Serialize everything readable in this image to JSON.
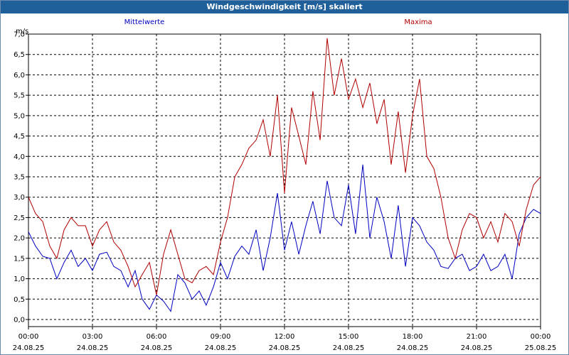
{
  "window": {
    "title": "Windgeschwindigkeit [m/s] skaliert"
  },
  "chart_data": {
    "type": "line",
    "title": "Windgeschwindigkeit [m/s] skaliert",
    "ylabel": "m/s",
    "xlabel": "",
    "ylim": [
      0,
      7.0
    ],
    "yticks": [
      "0,0",
      "0,5",
      "1,0",
      "1,5",
      "2,0",
      "2,5",
      "3,0",
      "3,5",
      "4,0",
      "4,5",
      "5,0",
      "5,5",
      "6,0",
      "6,5",
      "7,0"
    ],
    "xlim_hours": [
      0,
      24
    ],
    "xticks": [
      {
        "time": "00:00",
        "date": "24.08.25"
      },
      {
        "time": "03:00",
        "date": "24.08.25"
      },
      {
        "time": "06:00",
        "date": "24.08.25"
      },
      {
        "time": "09:00",
        "date": "24.08.25"
      },
      {
        "time": "12:00",
        "date": "24.08.25"
      },
      {
        "time": "15:00",
        "date": "24.08.25"
      },
      {
        "time": "18:00",
        "date": "24.08.25"
      },
      {
        "time": "21:00",
        "date": "24.08.25"
      },
      {
        "time": "00:00",
        "date": "25.08.25"
      }
    ],
    "grid": true,
    "series": [
      {
        "name": "Mittelwerte",
        "color": "#0000c0",
        "x": [
          0,
          0.33,
          0.67,
          1,
          1.33,
          1.67,
          2,
          2.33,
          2.67,
          3,
          3.33,
          3.67,
          4,
          4.33,
          4.67,
          5,
          5.33,
          5.67,
          6,
          6.33,
          6.67,
          7,
          7.33,
          7.67,
          8,
          8.33,
          8.67,
          9,
          9.33,
          9.67,
          10,
          10.33,
          10.67,
          11,
          11.33,
          11.67,
          12,
          12.33,
          12.67,
          13,
          13.33,
          13.67,
          14,
          14.33,
          14.67,
          15,
          15.33,
          15.67,
          16,
          16.33,
          16.67,
          17,
          17.33,
          17.67,
          18,
          18.33,
          18.67,
          19,
          19.33,
          19.67,
          20,
          20.33,
          20.67,
          21,
          21.33,
          21.67,
          22,
          22.33,
          22.67,
          23,
          23.33,
          23.67,
          24
        ],
        "values": [
          2.15,
          1.8,
          1.55,
          1.5,
          1.0,
          1.4,
          1.7,
          1.3,
          1.5,
          1.2,
          1.6,
          1.65,
          1.3,
          1.2,
          0.8,
          1.2,
          0.5,
          0.25,
          0.6,
          0.45,
          0.2,
          1.1,
          0.9,
          0.5,
          0.7,
          0.35,
          0.8,
          1.4,
          1.0,
          1.55,
          1.8,
          1.6,
          2.2,
          1.2,
          2.0,
          3.1,
          1.7,
          2.4,
          1.6,
          2.3,
          2.9,
          2.1,
          3.4,
          2.5,
          2.3,
          3.3,
          2.1,
          3.8,
          2.0,
          3.0,
          2.4,
          1.5,
          2.8,
          1.3,
          2.5,
          2.3,
          1.9,
          1.7,
          1.3,
          1.25,
          1.5,
          1.6,
          1.2,
          1.3,
          1.6,
          1.2,
          1.3,
          1.6,
          1.0,
          2.1,
          2.5,
          2.7,
          2.6
        ]
      },
      {
        "name": "Maxima",
        "color": "#b00000",
        "x": [
          0,
          0.33,
          0.67,
          1,
          1.33,
          1.67,
          2,
          2.33,
          2.67,
          3,
          3.33,
          3.67,
          4,
          4.33,
          4.67,
          5,
          5.33,
          5.67,
          6,
          6.33,
          6.67,
          7,
          7.33,
          7.67,
          8,
          8.33,
          8.67,
          9,
          9.33,
          9.67,
          10,
          10.33,
          10.67,
          11,
          11.33,
          11.67,
          12,
          12.33,
          12.67,
          13,
          13.33,
          13.67,
          14,
          14.33,
          14.67,
          15,
          15.33,
          15.67,
          16,
          16.33,
          16.67,
          17,
          17.33,
          17.67,
          18,
          18.33,
          18.67,
          19,
          19.33,
          19.67,
          20,
          20.33,
          20.67,
          21,
          21.33,
          21.67,
          22,
          22.33,
          22.67,
          23,
          23.33,
          23.67,
          24
        ],
        "values": [
          3.0,
          2.6,
          2.4,
          1.8,
          1.5,
          2.2,
          2.5,
          2.3,
          2.3,
          1.8,
          2.2,
          2.4,
          1.9,
          1.7,
          1.3,
          0.8,
          1.1,
          1.4,
          0.6,
          1.6,
          2.2,
          1.6,
          1.0,
          0.9,
          1.2,
          1.3,
          1.1,
          1.9,
          2.5,
          3.5,
          3.8,
          4.2,
          4.4,
          4.9,
          4.0,
          5.5,
          3.1,
          5.2,
          4.5,
          3.8,
          5.6,
          4.4,
          6.9,
          5.5,
          6.4,
          5.4,
          5.9,
          5.2,
          5.8,
          4.8,
          5.4,
          3.8,
          5.1,
          3.6,
          5.0,
          5.9,
          4.0,
          3.7,
          3.0,
          2.0,
          1.5,
          2.2,
          2.6,
          2.5,
          2.0,
          2.4,
          1.9,
          2.6,
          2.4,
          1.8,
          2.7,
          3.3,
          3.5
        ]
      }
    ]
  }
}
